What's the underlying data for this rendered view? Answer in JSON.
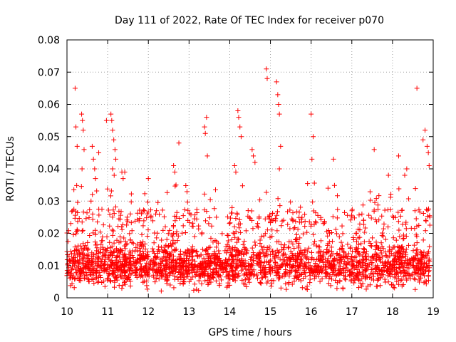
{
  "chart_data": {
    "type": "scatter",
    "title": "Day 111 of 2022, Rate Of TEC Index for receiver p070",
    "xlabel": "GPS time / hours",
    "ylabel": "ROTI / TECUs",
    "xlim": [
      10,
      19
    ],
    "ylim": [
      0,
      0.08
    ],
    "xticks": [
      "10",
      "11",
      "12",
      "13",
      "14",
      "15",
      "16",
      "17",
      "18",
      "19"
    ],
    "yticks": [
      "0",
      "0.01",
      "0.02",
      "0.03",
      "0.04",
      "0.05",
      "0.06",
      "0.07",
      "0.08"
    ],
    "grid": true,
    "marker": "+",
    "color": "#ff0000",
    "series": [
      {
        "name": "ROTI",
        "points": [
          [
            10.2,
            0.065
          ],
          [
            10.22,
            0.053
          ],
          [
            10.25,
            0.047
          ],
          [
            10.36,
            0.057
          ],
          [
            10.38,
            0.055
          ],
          [
            10.4,
            0.052
          ],
          [
            10.42,
            0.046
          ],
          [
            10.37,
            0.04
          ],
          [
            10.62,
            0.047
          ],
          [
            10.65,
            0.043
          ],
          [
            10.68,
            0.04
          ],
          [
            10.7,
            0.037
          ],
          [
            10.78,
            0.045
          ],
          [
            10.97,
            0.055
          ],
          [
            11.08,
            0.057
          ],
          [
            11.1,
            0.055
          ],
          [
            11.12,
            0.052
          ],
          [
            11.15,
            0.049
          ],
          [
            11.18,
            0.046
          ],
          [
            11.2,
            0.043
          ],
          [
            11.12,
            0.04
          ],
          [
            11.16,
            0.038
          ],
          [
            11.35,
            0.039
          ],
          [
            11.38,
            0.037
          ],
          [
            11.42,
            0.039
          ],
          [
            12.0,
            0.037
          ],
          [
            12.62,
            0.041
          ],
          [
            12.65,
            0.039
          ],
          [
            12.68,
            0.035
          ],
          [
            12.75,
            0.048
          ],
          [
            13.38,
            0.053
          ],
          [
            13.4,
            0.051
          ],
          [
            13.43,
            0.056
          ],
          [
            13.45,
            0.044
          ],
          [
            14.12,
            0.041
          ],
          [
            14.15,
            0.039
          ],
          [
            14.2,
            0.058
          ],
          [
            14.22,
            0.056
          ],
          [
            14.25,
            0.053
          ],
          [
            14.28,
            0.05
          ],
          [
            14.55,
            0.046
          ],
          [
            14.58,
            0.044
          ],
          [
            14.62,
            0.042
          ],
          [
            14.9,
            0.071
          ],
          [
            14.92,
            0.068
          ],
          [
            15.15,
            0.067
          ],
          [
            15.18,
            0.063
          ],
          [
            15.2,
            0.06
          ],
          [
            15.22,
            0.057
          ],
          [
            15.25,
            0.047
          ],
          [
            15.22,
            0.04
          ],
          [
            16.0,
            0.057
          ],
          [
            16.02,
            0.043
          ],
          [
            16.05,
            0.05
          ],
          [
            16.55,
            0.043
          ],
          [
            17.55,
            0.046
          ],
          [
            17.9,
            0.038
          ],
          [
            18.15,
            0.044
          ],
          [
            18.3,
            0.038
          ],
          [
            18.35,
            0.04
          ],
          [
            18.6,
            0.065
          ],
          [
            18.75,
            0.049
          ],
          [
            18.8,
            0.052
          ],
          [
            18.85,
            0.047
          ],
          [
            18.88,
            0.045
          ],
          [
            18.9,
            0.041
          ]
        ]
      }
    ],
    "dense_cloud": {
      "x_range": [
        10,
        18.92
      ],
      "y_floor": 0.002,
      "y_band_center": 0.01,
      "y_band_upper": 0.03,
      "note": "thousands of points concentrated between 0.005 and 0.020"
    }
  }
}
